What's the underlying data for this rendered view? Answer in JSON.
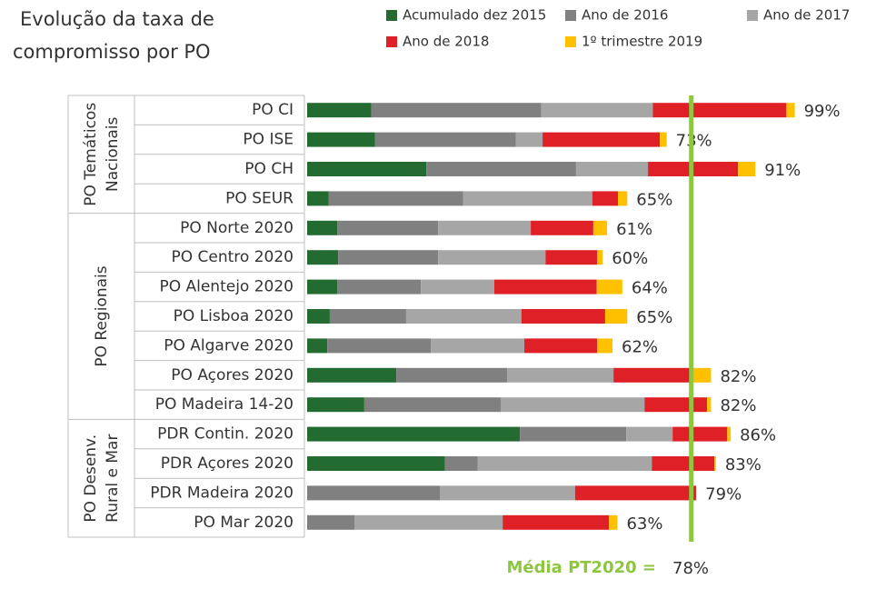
{
  "chart_data": {
    "type": "stacked-bar-horizontal",
    "title_lines": [
      "Evolução da taxa de",
      "compromisso por PO"
    ],
    "groups": [
      {
        "label_lines": [
          "PO Temáticos",
          "Nacionais"
        ],
        "categories": [
          "PO CI",
          "PO ISE",
          "PO CH",
          "PO SEUR"
        ]
      },
      {
        "label_lines": [
          "PO Regionais"
        ],
        "categories": [
          "PO Norte 2020",
          "PO Centro 2020",
          "PO Alentejo 2020",
          "PO Lisboa 2020",
          "PO Algarve 2020",
          "PO Açores 2020",
          "PO Madeira 14-20"
        ]
      },
      {
        "label_lines": [
          "PO Desenv.",
          "Rural e Mar"
        ],
        "categories": [
          "PDR Contin. 2020",
          "PDR Açores 2020",
          "PDR Madeira 2020",
          "PO Mar 2020"
        ]
      }
    ],
    "series": [
      {
        "name": "Acumulado dez 2015",
        "color": "#236b30",
        "values": [
          13,
          13.8,
          24.2,
          4.4,
          6.1,
          6.3,
          6.1,
          4.6,
          4.1,
          18.1,
          11.6,
          43.2,
          28,
          0,
          0
        ]
      },
      {
        "name": "Ano de 2016",
        "color": "#808080",
        "values": [
          34.5,
          28.6,
          30.4,
          27.3,
          20.5,
          20.3,
          17,
          15.5,
          21,
          22.5,
          27.7,
          21.6,
          6.6,
          27,
          9.6
        ]
      },
      {
        "name": "Ano de 2017",
        "color": "#a6a6a6",
        "values": [
          22.7,
          5.4,
          14.6,
          26.2,
          18.8,
          21.8,
          14.9,
          23.4,
          19,
          21.6,
          29.2,
          9.4,
          35.4,
          27.4,
          30.1
        ]
      },
      {
        "name": "Ano de 2018",
        "color": "#e02027",
        "values": [
          27.1,
          23.8,
          18.3,
          5.2,
          12.7,
          10.5,
          20.8,
          17,
          14.8,
          16.1,
          12.7,
          11.1,
          12.7,
          24.6,
          21.6
        ]
      },
      {
        "name": "1º trimestre 2019",
        "color": "#ffc000",
        "values": [
          1.7,
          1.4,
          3.5,
          1.9,
          2.8,
          1.1,
          5.2,
          4.5,
          3.1,
          3.7,
          0.8,
          0.7,
          0.3,
          0,
          1.7
        ]
      }
    ],
    "totals": {
      "values": [
        99,
        73,
        91,
        65,
        61,
        60,
        64,
        65,
        62,
        82,
        82,
        86,
        83,
        79,
        63
      ],
      "value_labels": [
        "99%",
        "73%",
        "91%",
        "65%",
        "61%",
        "60%",
        "64%",
        "65%",
        "62%",
        "82%",
        "82%",
        "86%",
        "83%",
        "79%",
        "63%"
      ]
    },
    "mean": {
      "label": "Média PT2020 =",
      "value": 78,
      "value_label": "78%",
      "color": "#8dc63f"
    },
    "xlim": [
      0,
      100
    ]
  }
}
